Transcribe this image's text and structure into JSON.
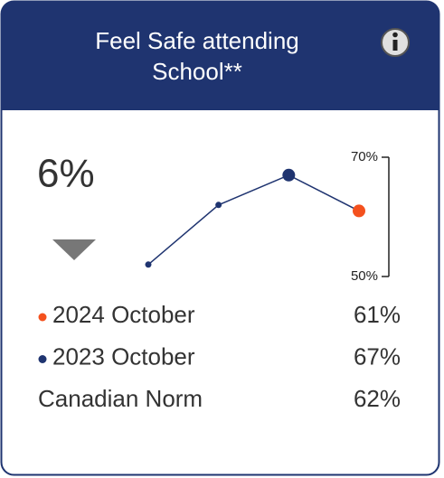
{
  "header": {
    "title_lines": [
      "Feel Safe attending",
      "School**"
    ]
  },
  "change": "6%",
  "chart_data": {
    "type": "line",
    "x": [
      null,
      null,
      null,
      null
    ],
    "series": [
      {
        "name": null,
        "color": "#1f3470",
        "point_colors": [
          "#1f3470",
          "#1f3470",
          "#1f3470",
          "#f4511e"
        ],
        "values": [
          52,
          62,
          67,
          61
        ]
      }
    ],
    "ylim": [
      50,
      70
    ],
    "yticks": [
      {
        "value": 50,
        "label": "50%"
      },
      {
        "value": 70,
        "label": "70%"
      }
    ]
  },
  "rows": [
    {
      "label": "2024 October",
      "value": "61%",
      "color": "#f4511e"
    },
    {
      "label": "2023 October",
      "value": "67%",
      "color": "#1f3470"
    },
    {
      "label": "Canadian Norm",
      "value": "62%"
    }
  ]
}
